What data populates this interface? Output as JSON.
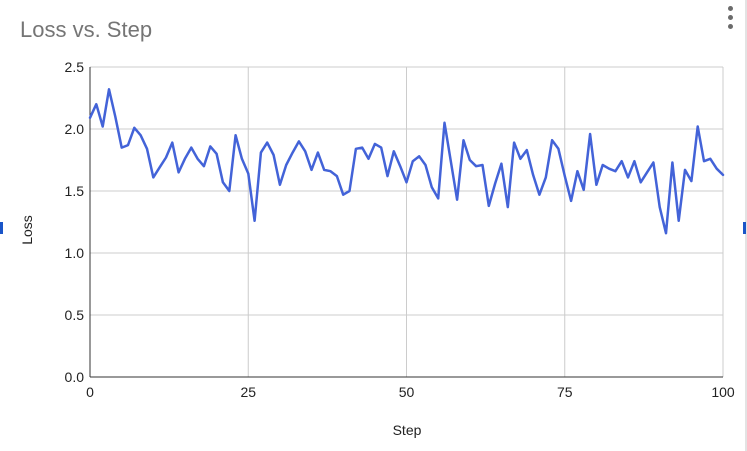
{
  "chart_data": {
    "type": "line",
    "title": "Loss vs. Step",
    "xlabel": "Step",
    "ylabel": "Loss",
    "xlim": [
      0,
      100
    ],
    "ylim": [
      0,
      2.5
    ],
    "xticks": [
      "0",
      "25",
      "50",
      "75",
      "100"
    ],
    "yticks": [
      "0.0",
      "0.5",
      "1.0",
      "1.5",
      "2.0",
      "2.5"
    ],
    "grid": true,
    "legend": "none",
    "series": [
      {
        "color": "#4363d8",
        "x": [
          0,
          1,
          2,
          3,
          4,
          5,
          6,
          7,
          8,
          9,
          10,
          11,
          12,
          13,
          14,
          15,
          16,
          17,
          18,
          19,
          20,
          21,
          22,
          23,
          24,
          25,
          26,
          27,
          28,
          29,
          30,
          31,
          32,
          33,
          34,
          35,
          36,
          37,
          38,
          39,
          40,
          41,
          42,
          43,
          44,
          45,
          46,
          47,
          48,
          49,
          50,
          51,
          52,
          53,
          54,
          55,
          56,
          57,
          58,
          59,
          60,
          61,
          62,
          63,
          64,
          65,
          66,
          67,
          68,
          69,
          70,
          71,
          72,
          73,
          74,
          75,
          76,
          77,
          78,
          79,
          80,
          81,
          82,
          83,
          84,
          85,
          86,
          87,
          88,
          89,
          90,
          91,
          92,
          93,
          94,
          95,
          96,
          97,
          98,
          99,
          100
        ],
        "y": [
          2.09,
          2.2,
          2.02,
          2.32,
          2.1,
          1.85,
          1.87,
          2.01,
          1.95,
          1.84,
          1.61,
          1.69,
          1.77,
          1.89,
          1.65,
          1.76,
          1.85,
          1.76,
          1.7,
          1.86,
          1.8,
          1.57,
          1.5,
          1.95,
          1.76,
          1.64,
          1.26,
          1.81,
          1.89,
          1.79,
          1.55,
          1.71,
          1.81,
          1.9,
          1.82,
          1.67,
          1.81,
          1.67,
          1.66,
          1.62,
          1.47,
          1.5,
          1.84,
          1.85,
          1.76,
          1.88,
          1.85,
          1.62,
          1.82,
          1.7,
          1.57,
          1.74,
          1.78,
          1.71,
          1.53,
          1.44,
          2.05,
          1.74,
          1.43,
          1.91,
          1.75,
          1.7,
          1.71,
          1.38,
          1.56,
          1.72,
          1.37,
          1.89,
          1.76,
          1.83,
          1.63,
          1.47,
          1.61,
          1.91,
          1.84,
          1.62,
          1.42,
          1.66,
          1.51,
          1.96,
          1.55,
          1.71,
          1.68,
          1.66,
          1.74,
          1.61,
          1.74,
          1.57,
          1.65,
          1.73,
          1.37,
          1.16,
          1.73,
          1.26,
          1.67,
          1.58,
          2.02,
          1.74,
          1.76,
          1.68,
          1.63
        ]
      }
    ]
  }
}
